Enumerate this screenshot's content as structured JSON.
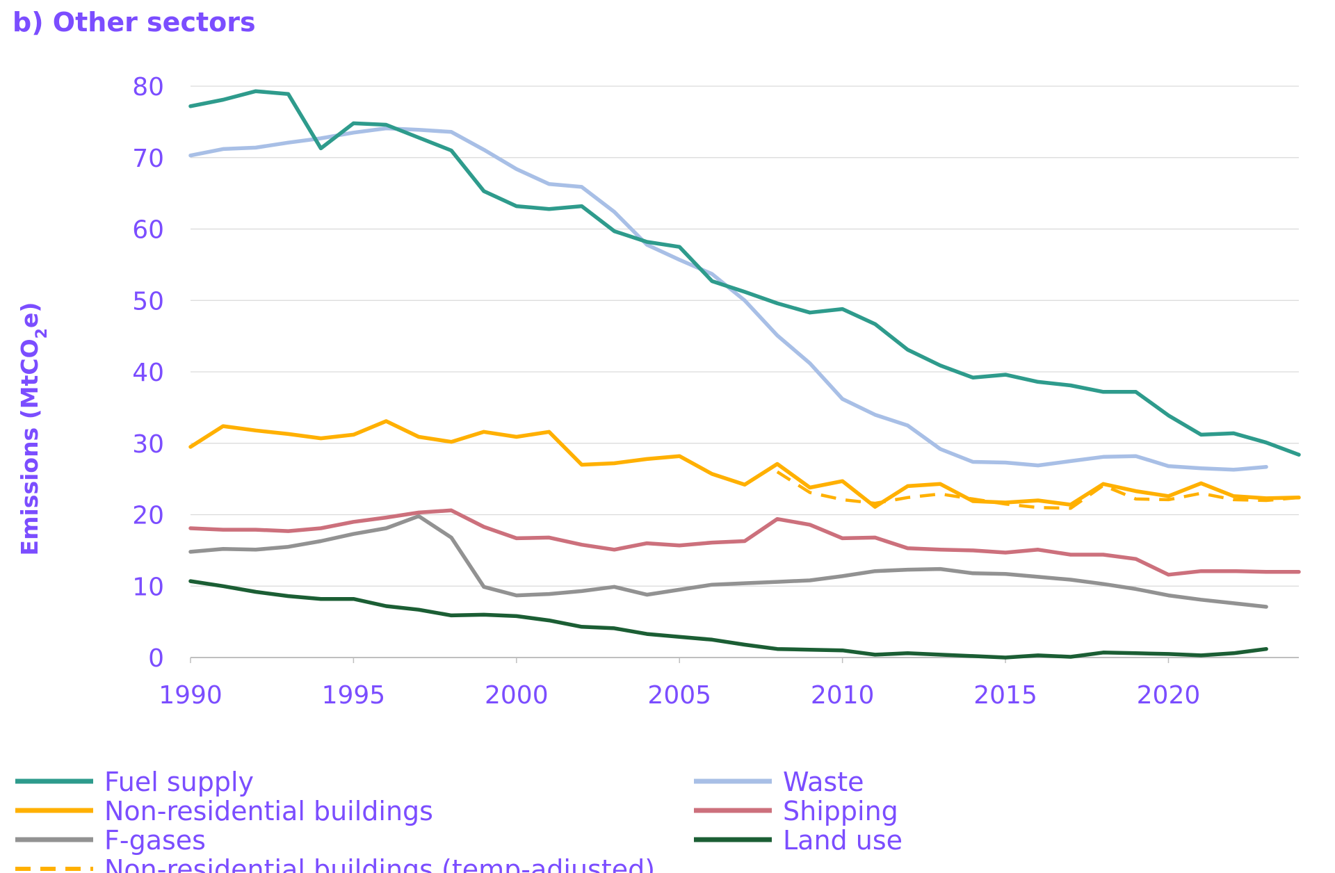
{
  "title": "b) Other sectors",
  "colors": {
    "text": "#7b4dff",
    "grid": "#d9d9d9",
    "axis": "#bfbfbf"
  },
  "chart_data": {
    "type": "line",
    "title": "b) Other sectors",
    "ylabel": "Emissions (MtCO2e)",
    "ylabel_parts": {
      "main": "Emissions (MtCO",
      "sub": "2",
      "tail": "e)"
    },
    "xlabel": "",
    "xlim": [
      1990,
      2024
    ],
    "ylim": [
      0,
      80
    ],
    "yticks": [
      0,
      10,
      20,
      30,
      40,
      50,
      60,
      70,
      80
    ],
    "xticks": [
      1990,
      1995,
      2000,
      2005,
      2010,
      2015,
      2020
    ],
    "grid": true,
    "legend_position": "bottom",
    "series": [
      {
        "name": "Fuel supply",
        "color": "#2e9b8c",
        "dash": false,
        "x": [
          1990,
          1991,
          1992,
          1993,
          1994,
          1995,
          1996,
          1997,
          1998,
          1999,
          2000,
          2001,
          2002,
          2003,
          2004,
          2005,
          2006,
          2007,
          2008,
          2009,
          2010,
          2011,
          2012,
          2013,
          2014,
          2015,
          2016,
          2017,
          2018,
          2019,
          2020,
          2021,
          2022,
          2023,
          2024
        ],
        "values": [
          77.2,
          78.1,
          79.3,
          78.9,
          71.3,
          74.8,
          74.6,
          72.8,
          71.0,
          65.3,
          63.2,
          62.8,
          63.2,
          59.7,
          58.2,
          57.5,
          52.7,
          51.2,
          49.6,
          48.3,
          48.8,
          46.7,
          43.1,
          40.9,
          39.2,
          39.6,
          38.6,
          38.1,
          37.2,
          37.2,
          33.9,
          31.2,
          31.4,
          30.1,
          28.4
        ]
      },
      {
        "name": "Waste",
        "color": "#a8bfe6",
        "dash": false,
        "x": [
          1990,
          1991,
          1992,
          1993,
          1994,
          1995,
          1996,
          1997,
          1998,
          1999,
          2000,
          2001,
          2002,
          2003,
          2004,
          2005,
          2006,
          2007,
          2008,
          2009,
          2010,
          2011,
          2012,
          2013,
          2014,
          2015,
          2016,
          2017,
          2018,
          2019,
          2020,
          2021,
          2022,
          2023
        ],
        "values": [
          70.3,
          71.2,
          71.4,
          72.1,
          72.7,
          73.5,
          74.1,
          73.9,
          73.6,
          71.1,
          68.4,
          66.3,
          65.9,
          62.4,
          57.8,
          55.7,
          53.7,
          50.0,
          45.1,
          41.2,
          36.2,
          34.0,
          32.5,
          29.2,
          27.4,
          27.3,
          26.9,
          27.5,
          28.1,
          28.2,
          26.8,
          26.5,
          26.3,
          26.7
        ]
      },
      {
        "name": "Non-residential buildings",
        "color": "#ffb000",
        "dash": false,
        "x": [
          1990,
          1991,
          1992,
          1993,
          1994,
          1995,
          1996,
          1997,
          1998,
          1999,
          2000,
          2001,
          2002,
          2003,
          2004,
          2005,
          2006,
          2007,
          2008,
          2009,
          2010,
          2011,
          2012,
          2013,
          2014,
          2015,
          2016,
          2017,
          2018,
          2019,
          2020,
          2021,
          2022,
          2023,
          2024
        ],
        "values": [
          29.5,
          32.4,
          31.8,
          31.3,
          30.7,
          31.2,
          33.1,
          30.9,
          30.2,
          31.6,
          30.9,
          31.6,
          27.0,
          27.2,
          27.8,
          28.2,
          25.7,
          24.2,
          27.1,
          23.8,
          24.7,
          21.1,
          24.0,
          24.3,
          21.9,
          21.7,
          22.0,
          21.4,
          24.3,
          23.3,
          22.6,
          24.4,
          22.6,
          22.3,
          22.4
        ]
      },
      {
        "name": "Shipping",
        "color": "#cc707c",
        "dash": false,
        "x": [
          1990,
          1991,
          1992,
          1993,
          1994,
          1995,
          1996,
          1997,
          1998,
          1999,
          2000,
          2001,
          2002,
          2003,
          2004,
          2005,
          2006,
          2007,
          2008,
          2009,
          2010,
          2011,
          2012,
          2013,
          2014,
          2015,
          2016,
          2017,
          2018,
          2019,
          2020,
          2021,
          2022,
          2023,
          2024
        ],
        "values": [
          18.1,
          17.9,
          17.9,
          17.7,
          18.1,
          19.0,
          19.6,
          20.3,
          20.6,
          18.3,
          16.7,
          16.8,
          15.8,
          15.1,
          16.0,
          15.7,
          16.1,
          16.3,
          19.4,
          18.6,
          16.7,
          16.8,
          15.3,
          15.1,
          15.0,
          14.7,
          15.1,
          14.4,
          14.4,
          13.8,
          11.6,
          12.1,
          12.1,
          12.0,
          12.0
        ]
      },
      {
        "name": "F-gases",
        "color": "#929292",
        "dash": false,
        "x": [
          1990,
          1991,
          1992,
          1993,
          1994,
          1995,
          1996,
          1997,
          1998,
          1999,
          2000,
          2001,
          2002,
          2003,
          2004,
          2005,
          2006,
          2007,
          2008,
          2009,
          2010,
          2011,
          2012,
          2013,
          2014,
          2015,
          2016,
          2017,
          2018,
          2019,
          2020,
          2021,
          2022,
          2023
        ],
        "values": [
          14.8,
          15.2,
          15.1,
          15.5,
          16.3,
          17.3,
          18.1,
          19.8,
          16.8,
          9.9,
          8.7,
          8.9,
          9.3,
          9.9,
          8.8,
          9.5,
          10.2,
          10.4,
          10.6,
          10.8,
          11.4,
          12.1,
          12.3,
          12.4,
          11.8,
          11.7,
          11.3,
          10.9,
          10.3,
          9.6,
          8.7,
          8.1,
          7.6,
          7.1
        ]
      },
      {
        "name": "Land use",
        "color": "#1b5e34",
        "dash": false,
        "x": [
          1990,
          1991,
          1992,
          1993,
          1994,
          1995,
          1996,
          1997,
          1998,
          1999,
          2000,
          2001,
          2002,
          2003,
          2004,
          2005,
          2006,
          2007,
          2008,
          2009,
          2010,
          2011,
          2012,
          2013,
          2014,
          2015,
          2016,
          2017,
          2018,
          2019,
          2020,
          2021,
          2022,
          2023
        ],
        "values": [
          10.7,
          10.0,
          9.2,
          8.6,
          8.2,
          8.2,
          7.2,
          6.7,
          5.9,
          6.0,
          5.8,
          5.2,
          4.3,
          4.1,
          3.3,
          2.9,
          2.5,
          1.8,
          1.2,
          1.1,
          1.0,
          0.4,
          0.6,
          0.4,
          0.2,
          0.0,
          0.3,
          0.1,
          0.7,
          0.6,
          0.5,
          0.3,
          0.6,
          1.2
        ]
      },
      {
        "name": "Non-residential buildings (temp-adjusted)",
        "color": "#ffb000",
        "dash": true,
        "x": [
          2008,
          2009,
          2010,
          2011,
          2012,
          2013,
          2014,
          2015,
          2016,
          2017,
          2018,
          2019,
          2020,
          2021,
          2022,
          2023,
          2024
        ],
        "values": [
          26.0,
          23.1,
          22.1,
          21.6,
          22.4,
          22.9,
          22.2,
          21.5,
          21.0,
          20.9,
          24.1,
          22.2,
          22.1,
          23.0,
          22.1,
          22.0,
          22.4
        ]
      }
    ]
  }
}
